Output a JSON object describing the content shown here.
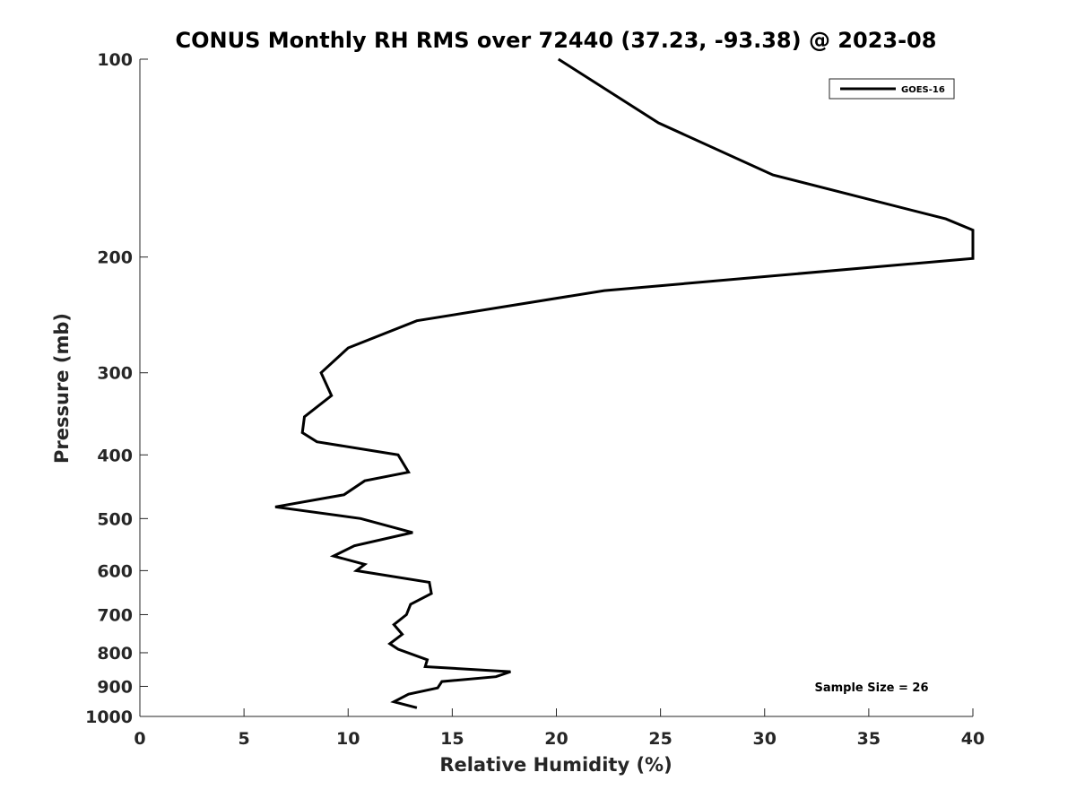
{
  "chart_data": {
    "type": "line",
    "title": "CONUS Monthly RH RMS over 72440 (37.23, -93.38) @ 2023-08",
    "xlabel": "Relative Humidity (%)",
    "ylabel": "Pressure (mb)",
    "xlim": [
      0,
      40
    ],
    "ylim": [
      100,
      1000
    ],
    "y_scale": "log",
    "y_direction": "reversed",
    "grid": false,
    "xticks": [
      0,
      5,
      10,
      15,
      20,
      25,
      30,
      35,
      40
    ],
    "yticks": [
      100,
      200,
      300,
      400,
      500,
      600,
      700,
      800,
      900,
      1000
    ],
    "legend": {
      "placement": "top-right"
    },
    "annotation": "Sample Size = 26",
    "series": [
      {
        "name": "GOES-16",
        "color": "#000000",
        "points": [
          [
            20.1,
            100
          ],
          [
            24.9,
            125
          ],
          [
            30.4,
            150
          ],
          [
            38.7,
            175
          ],
          [
            40.0,
            182
          ],
          [
            40.0,
            201
          ],
          [
            22.3,
            225
          ],
          [
            13.3,
            250
          ],
          [
            10.0,
            275
          ],
          [
            8.7,
            300
          ],
          [
            9.2,
            325
          ],
          [
            7.9,
            350
          ],
          [
            7.8,
            370
          ],
          [
            8.5,
            382
          ],
          [
            12.4,
            400
          ],
          [
            12.9,
            425
          ],
          [
            10.8,
            438
          ],
          [
            9.8,
            460
          ],
          [
            6.5,
            480
          ],
          [
            10.6,
            500
          ],
          [
            13.1,
            525
          ],
          [
            10.3,
            550
          ],
          [
            9.3,
            570
          ],
          [
            10.8,
            587
          ],
          [
            10.4,
            600
          ],
          [
            13.9,
            625
          ],
          [
            14.0,
            650
          ],
          [
            13.0,
            675
          ],
          [
            12.8,
            700
          ],
          [
            12.2,
            725
          ],
          [
            12.6,
            750
          ],
          [
            12.0,
            775
          ],
          [
            12.4,
            790
          ],
          [
            13.8,
            820
          ],
          [
            13.7,
            840
          ],
          [
            17.8,
            855
          ],
          [
            17.1,
            870
          ],
          [
            14.5,
            885
          ],
          [
            14.3,
            905
          ],
          [
            12.9,
            925
          ],
          [
            12.2,
            950
          ],
          [
            13.3,
            970
          ]
        ]
      }
    ]
  }
}
